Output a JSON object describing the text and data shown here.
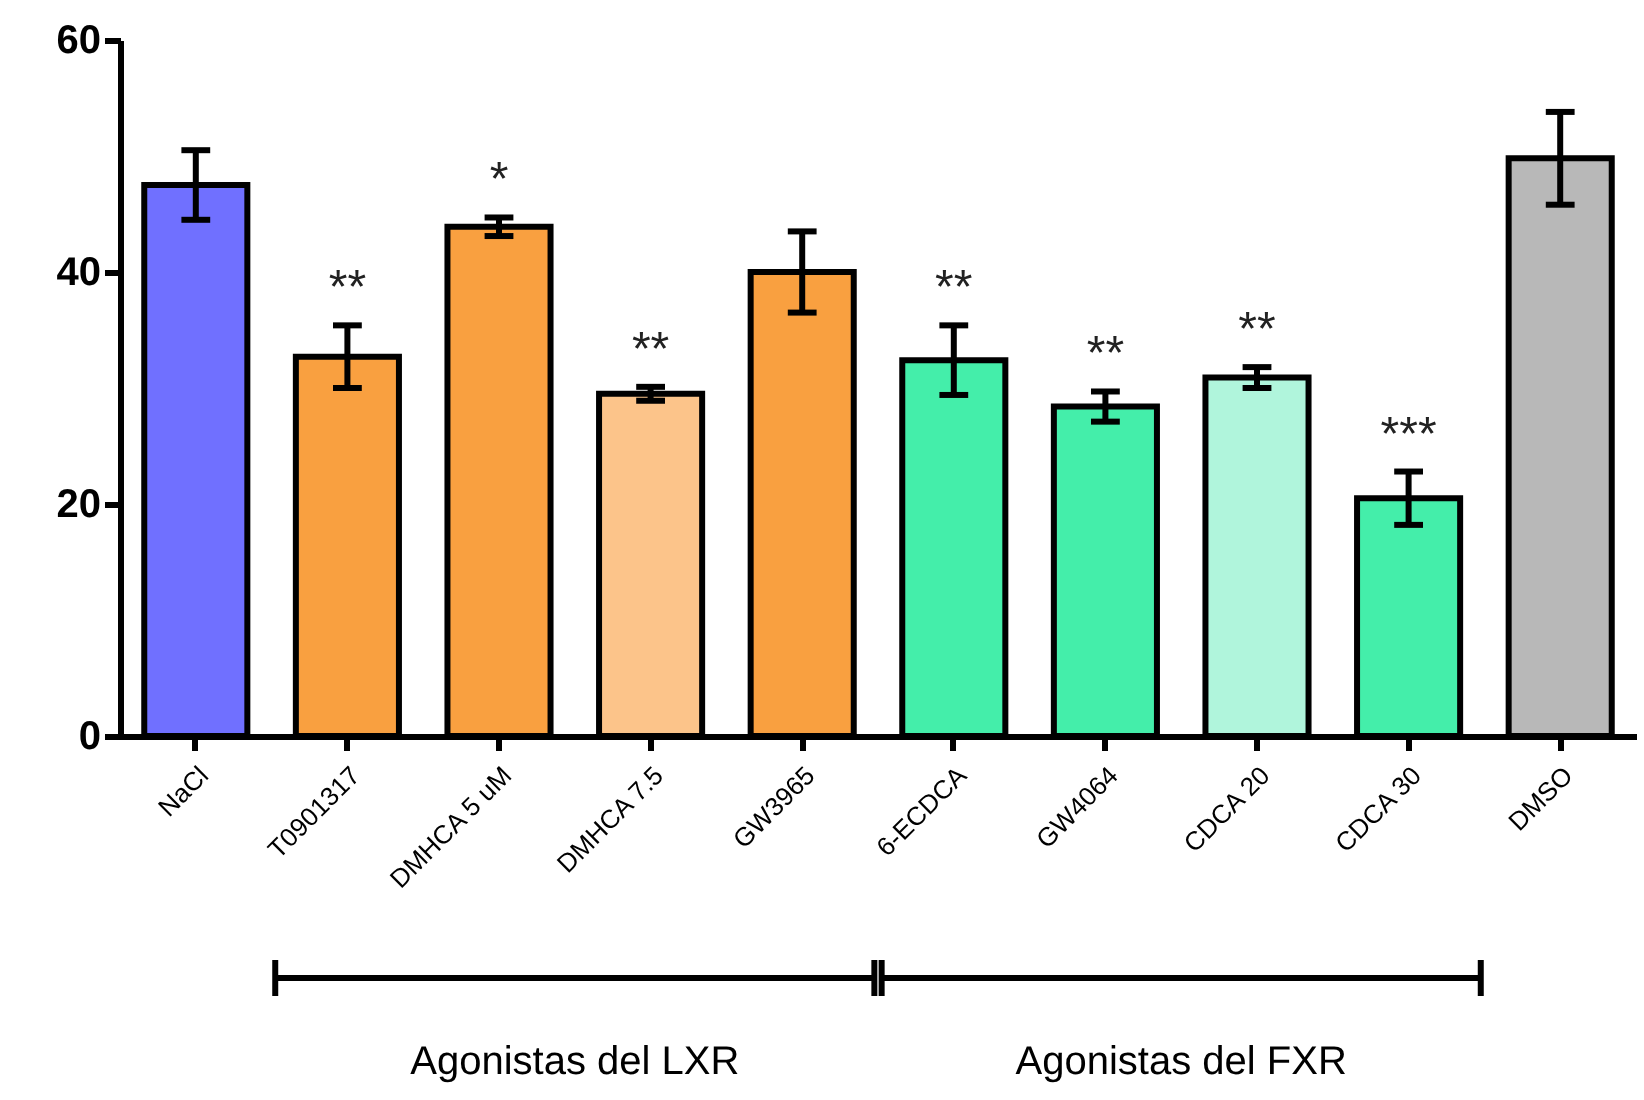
{
  "chart_data": {
    "type": "bar",
    "categories": [
      "NaCl",
      "T0901317",
      "DMHCA 5 uM",
      "DMHCA 7.5",
      "GW3965",
      "6-ECDCA",
      "GW4064",
      "CDCA 20",
      "CDCA 30",
      "DMSO"
    ],
    "values": [
      47.5,
      32.7,
      43.9,
      29.5,
      40.0,
      32.4,
      28.4,
      30.9,
      20.5,
      49.8
    ],
    "errors": [
      3.0,
      2.7,
      0.8,
      0.6,
      3.5,
      3.0,
      1.3,
      0.9,
      2.3,
      4.0
    ],
    "colors": [
      "#7070ff",
      "#f9a040",
      "#f9a040",
      "#fcc48a",
      "#f9a040",
      "#44eeaa",
      "#44eeaa",
      "#b0f5dc",
      "#44eeaa",
      "#b8b8b8"
    ],
    "ylim": [
      0,
      60
    ],
    "yticks": [
      0,
      20,
      40,
      60
    ],
    "grid": false,
    "annotations": [
      {
        "text": "**",
        "x": "T0901317",
        "y": 32.7
      },
      {
        "text": "*",
        "x": "DMHCA 5 uM",
        "y": 43.9
      },
      {
        "text": "**",
        "x": "DMHCA 7.5",
        "y": 29.5
      },
      {
        "text": "**",
        "x": "6-ECDCA",
        "y": 32.4
      },
      {
        "text": "**",
        "x": "GW4064",
        "y": 28.4
      },
      {
        "text": "**",
        "x": "CDCA 20",
        "y": 30.9
      },
      {
        "text": "***",
        "x": "CDCA 30",
        "y": 20.5
      },
      "Agonistas del LXR",
      "Agonistas del FXR"
    ]
  }
}
